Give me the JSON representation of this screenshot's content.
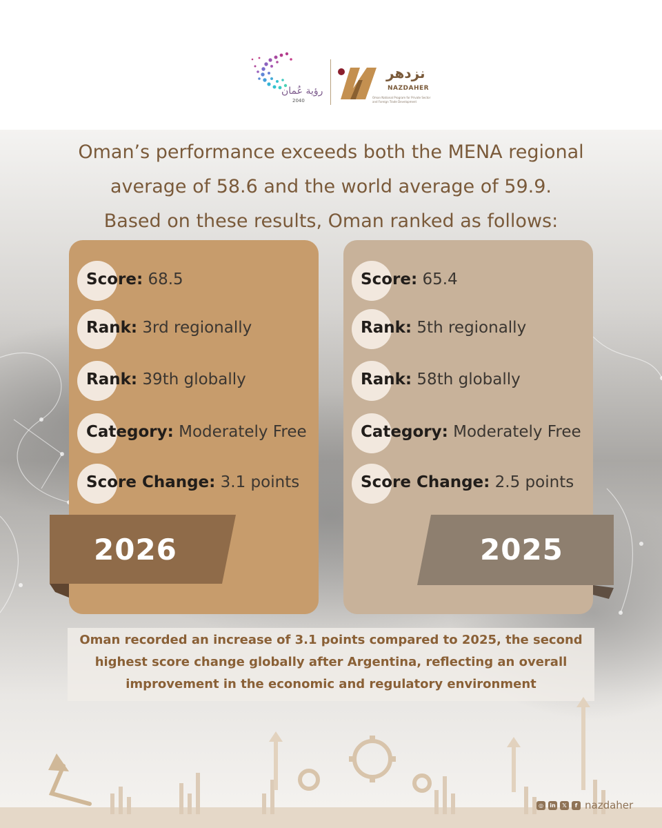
{
  "brand": {
    "vision_text": "رؤية عُمان",
    "vision_year": "2040",
    "nazdaher_arabic": "نزدهر",
    "nazdaher_name": "NAZDAHER",
    "nazdaher_sub": "Oman National Program for Private Sector and Foreign Trade Development"
  },
  "headline": {
    "line1": "Oman’s performance exceeds both the MENA regional",
    "line2": "average of 58.6 and the world average of 59.9.",
    "line3": "Based on these results, Oman ranked as follows:"
  },
  "cards": [
    {
      "year": "2026",
      "rows": [
        {
          "label": "Score:",
          "value": "68.5"
        },
        {
          "label": "Rank:",
          "value": "3rd regionally"
        },
        {
          "label": "Rank:",
          "value": "39th globally"
        },
        {
          "label": "Category:",
          "value": "Moderately Free"
        },
        {
          "label": "Score Change:",
          "value": "3.1 points"
        }
      ]
    },
    {
      "year": "2025",
      "rows": [
        {
          "label": "Score:",
          "value": "65.4"
        },
        {
          "label": "Rank:",
          "value": "5th regionally"
        },
        {
          "label": "Rank:",
          "value": "58th globally"
        },
        {
          "label": "Category:",
          "value": "Moderately Free"
        },
        {
          "label": "Score Change:",
          "value": "2.5 points"
        }
      ]
    }
  ],
  "note": {
    "line1": "Oman recorded an increase of 3.1 points compared to 2025, the second",
    "line2": "highest score change globally after Argentina, reflecting an overall",
    "line3": "improvement in the economic and regulatory environment"
  },
  "social": {
    "handle": "nazdaher"
  },
  "colors": {
    "card_2026": "#c79c6c",
    "card_2025": "#c8b29a",
    "ribbon_2026": "#8f6b49",
    "ribbon_2025": "#8e7f6f",
    "accent_text": "#7a5a3a"
  }
}
